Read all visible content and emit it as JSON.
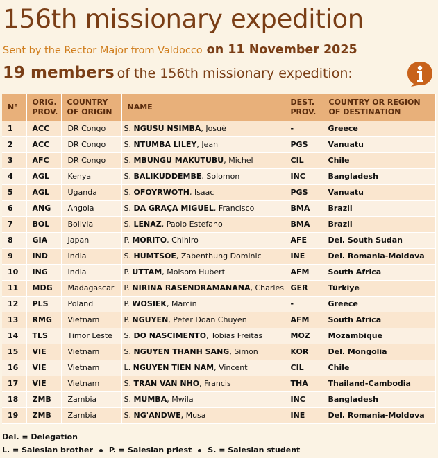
{
  "header": {
    "title": "156th missionary expedition",
    "sent_by": "Sent by the Rector Major from Valdocco",
    "date": "on 11 November 2025",
    "members_count": "19 members",
    "members_rest": "of the 156th missionary expedition:"
  },
  "colors": {
    "brand": "#7A3E16",
    "accent": "#D07E1E",
    "header_bg": "#E8B07A"
  },
  "logo": {
    "icon": "info-icon"
  },
  "table": {
    "columns": [
      "N°",
      "ORIG. PROV.",
      "COUNTRY OF ORIGIN",
      "NAME",
      "DEST. PROV.",
      "COUNTRY OR REGION OF DESTINATION"
    ],
    "rows": [
      {
        "n": "1",
        "orig": "ACC",
        "country": "DR Congo",
        "prefix": "S.",
        "surname": "NGUSU NSIMBA",
        "given": "Josuè",
        "dest": "-",
        "destination": "Greece"
      },
      {
        "n": "2",
        "orig": "ACC",
        "country": "DR Congo",
        "prefix": "S.",
        "surname": "NTUMBA LILEY",
        "given": "Jean",
        "dest": "PGS",
        "destination": "Vanuatu"
      },
      {
        "n": "3",
        "orig": "AFC",
        "country": "DR Congo",
        "prefix": "S.",
        "surname": "MBUNGU MAKUTUBU",
        "given": "Michel",
        "dest": "CIL",
        "destination": "Chile"
      },
      {
        "n": "4",
        "orig": "AGL",
        "country": "Kenya",
        "prefix": "S.",
        "surname": "BALIKUDDEMBE",
        "given": "Solomon",
        "dest": "INC",
        "destination": "Bangladesh"
      },
      {
        "n": "5",
        "orig": "AGL",
        "country": "Uganda",
        "prefix": "S.",
        "surname": "OFOYRWOTH",
        "given": "Isaac",
        "dest": "PGS",
        "destination": "Vanuatu"
      },
      {
        "n": "6",
        "orig": "ANG",
        "country": "Angola",
        "prefix": "S.",
        "surname": "DA GRAÇA MIGUEL",
        "given": "Francisco",
        "dest": "BMA",
        "destination": "Brazil"
      },
      {
        "n": "7",
        "orig": "BOL",
        "country": "Bolivia",
        "prefix": "S.",
        "surname": "LENAZ",
        "given": "Paolo Estefano",
        "dest": "BMA",
        "destination": "Brazil"
      },
      {
        "n": "8",
        "orig": "GIA",
        "country": "Japan",
        "prefix": "P.",
        "surname": "MORITO",
        "given": "Chihiro",
        "dest": "AFE",
        "destination": "Del. South Sudan"
      },
      {
        "n": "9",
        "orig": "IND",
        "country": "India",
        "prefix": "S.",
        "surname": "HUMTSOE",
        "given": "Zabenthung Dominic",
        "dest": "INE",
        "destination": "Del. Romania-Moldova"
      },
      {
        "n": "10",
        "orig": "ING",
        "country": "India",
        "prefix": "P.",
        "surname": "UTTAM",
        "given": "Molsom Hubert",
        "dest": "AFM",
        "destination": "South Africa"
      },
      {
        "n": "11",
        "orig": "MDG",
        "country": "Madagascar",
        "prefix": "P.",
        "surname": "NIRINA RASENDRAMANANA",
        "given": "Charles",
        "dest": "GER",
        "destination": "Türkiye"
      },
      {
        "n": "12",
        "orig": "PLS",
        "country": "Poland",
        "prefix": "P.",
        "surname": "WOSIEK",
        "given": "Marcin",
        "dest": "-",
        "destination": "Greece"
      },
      {
        "n": "13",
        "orig": "RMG",
        "country": "Vietnam",
        "prefix": "P.",
        "surname": "NGUYEN",
        "given": "Peter Doan Chuyen",
        "dest": "AFM",
        "destination": "South Africa"
      },
      {
        "n": "14",
        "orig": "TLS",
        "country": "Timor Leste",
        "prefix": "S.",
        "surname": "DO NASCIMENTO",
        "given": "Tobias Freitas",
        "dest": "MOZ",
        "destination": "Mozambique"
      },
      {
        "n": "15",
        "orig": "VIE",
        "country": "Vietnam",
        "prefix": "S.",
        "surname": "NGUYEN THANH SANG",
        "given": "Simon",
        "dest": "KOR",
        "destination": "Del. Mongolia"
      },
      {
        "n": "16",
        "orig": "VIE",
        "country": "Vietnam",
        "prefix": "L.",
        "surname": "NGUYEN TIEN NAM",
        "given": "Vincent",
        "dest": "CIL",
        "destination": "Chile"
      },
      {
        "n": "17",
        "orig": "VIE",
        "country": "Vietnam",
        "prefix": "S.",
        "surname": "TRAN VAN NHO",
        "given": "Francis",
        "dest": "THA",
        "destination": "Thailand-Cambodia"
      },
      {
        "n": "18",
        "orig": "ZMB",
        "country": "Zambia",
        "prefix": "S.",
        "surname": "MUMBA",
        "given": "Mwila",
        "dest": "INC",
        "destination": "Bangladesh"
      },
      {
        "n": "19",
        "orig": "ZMB",
        "country": "Zambia",
        "prefix": "S.",
        "surname": "NG'ANDWE",
        "given": "Musa",
        "dest": "INE",
        "destination": "Del. Romania-Moldova"
      }
    ]
  },
  "legend": {
    "delegation": "Del. = Delegation",
    "brother": "L. = Salesian brother",
    "priest": "P. = Salesian priest",
    "student": "S. = Salesian student"
  }
}
